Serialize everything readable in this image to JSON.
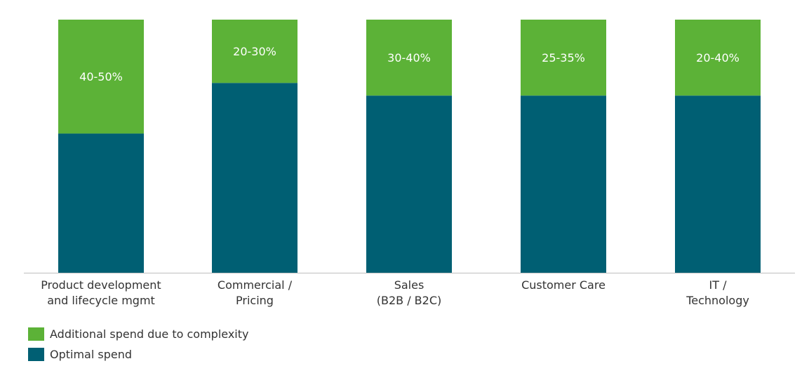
{
  "chart_data": {
    "type": "bar",
    "stacked": true,
    "categories": [
      [
        "Product development",
        "and lifecycle mgmt"
      ],
      [
        "Commercial /",
        "Pricing"
      ],
      [
        "Sales",
        "(B2B / B2C)"
      ],
      [
        "Customer Care"
      ],
      [
        "IT /",
        "Technology"
      ]
    ],
    "series": [
      {
        "name": "Optimal spend",
        "color": "#005f73",
        "values": [
          55,
          75,
          70,
          70,
          70
        ]
      },
      {
        "name": "Additional spend due to complexity",
        "color": "#5cb237",
        "values": [
          45,
          25,
          30,
          30,
          30
        ],
        "data_labels": [
          "40-50%",
          "20-30%",
          "30-40%",
          "25-35%",
          "20-40%"
        ]
      }
    ],
    "ylim": [
      0,
      100
    ],
    "title": "",
    "xlabel": "",
    "ylabel": "",
    "grid": false,
    "legend_position": "bottom-left",
    "axis_color": "#bfbfbf",
    "label_color": "#333333",
    "data_label_color": "#ffffff"
  }
}
